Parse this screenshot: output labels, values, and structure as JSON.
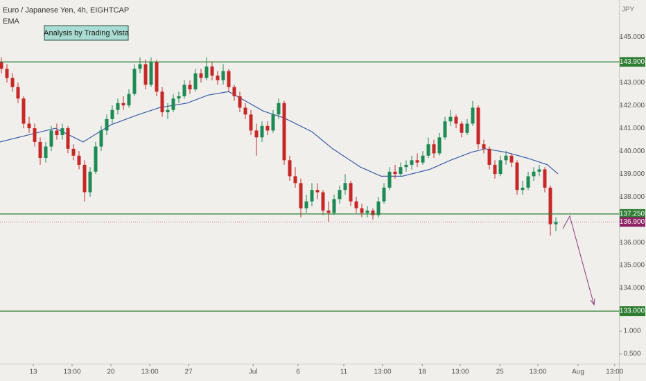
{
  "chart_data": {
    "type": "candlestick",
    "title": "Euro / Japanese Yen, 4h, EIGHTCAP",
    "annotation": "Analysis by Trading Vista",
    "y_unit": "JPY",
    "up_color": "#1e8a55",
    "down_color": "#c62828",
    "xlim": [
      -0.25,
      111.375
    ],
    "ylim": [
      130.7,
      146.61
    ],
    "y2lim": [
      0.288,
      8.242
    ],
    "yticks": [
      {
        "value": 145,
        "label": "145.000"
      },
      {
        "value": 143,
        "label": "143.000"
      },
      {
        "value": 142,
        "label": "142.000"
      },
      {
        "value": 141,
        "label": "141.000"
      },
      {
        "value": 140,
        "label": "140.000"
      },
      {
        "value": 139,
        "label": "139.000"
      },
      {
        "value": 138,
        "label": "138.000"
      },
      {
        "value": 136,
        "label": "136.000"
      },
      {
        "value": 135,
        "label": "135.000"
      },
      {
        "value": 134,
        "label": "134.000"
      }
    ],
    "y2ticks": [
      {
        "value": 1,
        "label": "1.000"
      },
      {
        "value": 0.5,
        "label": "0.500"
      }
    ],
    "xticks": [
      {
        "value": 5.75,
        "label": "13"
      },
      {
        "value": 12.75,
        "label": "13:00"
      },
      {
        "value": 19.75,
        "label": "20"
      },
      {
        "value": 26.75,
        "label": "13:00"
      },
      {
        "value": 33.75,
        "label": "27"
      },
      {
        "value": 45.4,
        "label": "Jul"
      },
      {
        "value": 53.5,
        "label": "6"
      },
      {
        "value": 61.75,
        "label": "11"
      },
      {
        "value": 68.75,
        "label": "13:00"
      },
      {
        "value": 75.9,
        "label": "18"
      },
      {
        "value": 82.75,
        "label": "13:00"
      },
      {
        "value": 89.9,
        "label": "25"
      },
      {
        "value": 96.75,
        "label": "13:00"
      },
      {
        "value": 104,
        "label": "Aug"
      },
      {
        "value": 110.6,
        "label": "13:00"
      }
    ],
    "levels": [
      {
        "value": 143.9,
        "label": "143.900",
        "color": "#2e7d32"
      },
      {
        "value": 137.25,
        "label": "137.250",
        "color": "#2e7d32"
      },
      {
        "value": 133.0,
        "label": "133.000",
        "color": "#2e7d32"
      }
    ],
    "current_price": {
      "value": 136.9,
      "label": "136.900",
      "color": "#8e2463"
    },
    "ema": {
      "name": "EMA",
      "color": "#3b5bab",
      "x": [
        -0.25,
        9.75,
        14.75,
        19.75,
        24.75,
        28.5,
        33.5,
        37.25,
        41,
        42.875,
        47.25,
        51,
        56,
        59.75,
        64.75,
        68.5,
        72.25,
        77.25,
        81,
        84.75,
        87.25,
        91,
        94.75,
        98.5,
        100.375
      ],
      "values": [
        140.4,
        141.0,
        140.4,
        141.15,
        141.6,
        141.9,
        142.1,
        142.45,
        142.6,
        142.35,
        141.75,
        141.45,
        140.85,
        140.1,
        139.3,
        138.9,
        138.9,
        139.2,
        139.6,
        139.95,
        140.1,
        139.95,
        139.7,
        139.4,
        139.0
      ]
    },
    "ohlc": [
      [
        143.9,
        144.1,
        143.4,
        143.6
      ],
      [
        143.6,
        143.8,
        143.0,
        143.2
      ],
      [
        143.2,
        143.4,
        142.6,
        142.8
      ],
      [
        142.8,
        143.0,
        142.1,
        142.3
      ],
      [
        142.3,
        142.4,
        141.0,
        141.2
      ],
      [
        141.2,
        141.5,
        140.8,
        141.0
      ],
      [
        141.0,
        141.2,
        140.2,
        140.4
      ],
      [
        140.4,
        140.6,
        139.4,
        139.7
      ],
      [
        139.7,
        140.4,
        139.5,
        140.2
      ],
      [
        140.2,
        141.1,
        140.0,
        140.9
      ],
      [
        140.9,
        141.2,
        140.5,
        140.7
      ],
      [
        140.7,
        141.2,
        140.5,
        141.0
      ],
      [
        141.0,
        141.1,
        139.9,
        140.1
      ],
      [
        140.1,
        140.3,
        139.6,
        139.8
      ],
      [
        139.8,
        140.0,
        139.2,
        139.4
      ],
      [
        139.4,
        139.6,
        137.8,
        138.2
      ],
      [
        138.2,
        139.3,
        138.0,
        139.1
      ],
      [
        139.1,
        140.4,
        139.0,
        140.2
      ],
      [
        140.2,
        141.1,
        140.0,
        140.9
      ],
      [
        140.9,
        141.6,
        140.7,
        141.4
      ],
      [
        141.4,
        142.0,
        141.2,
        141.8
      ],
      [
        141.8,
        142.3,
        141.6,
        142.1
      ],
      [
        142.1,
        142.4,
        141.8,
        142.0
      ],
      [
        142.0,
        142.7,
        141.9,
        142.5
      ],
      [
        142.5,
        143.8,
        142.4,
        143.6
      ],
      [
        143.6,
        144.1,
        143.4,
        143.8
      ],
      [
        143.8,
        144.0,
        142.7,
        142.9
      ],
      [
        142.9,
        144.1,
        142.8,
        143.9
      ],
      [
        143.9,
        144.0,
        142.4,
        142.6
      ],
      [
        142.6,
        142.8,
        141.5,
        141.7
      ],
      [
        141.7,
        142.1,
        141.4,
        141.8
      ],
      [
        141.8,
        142.5,
        141.7,
        142.3
      ],
      [
        142.3,
        142.6,
        142.1,
        142.4
      ],
      [
        142.4,
        143.1,
        142.3,
        142.9
      ],
      [
        142.9,
        143.1,
        142.5,
        142.7
      ],
      [
        142.7,
        143.6,
        142.6,
        143.4
      ],
      [
        143.4,
        143.6,
        143.0,
        143.2
      ],
      [
        143.2,
        144.1,
        143.1,
        143.7
      ],
      [
        143.7,
        143.9,
        143.1,
        143.3
      ],
      [
        143.3,
        143.5,
        142.9,
        143.1
      ],
      [
        143.1,
        143.8,
        142.9,
        143.5
      ],
      [
        143.5,
        143.6,
        142.6,
        142.8
      ],
      [
        142.8,
        142.9,
        142.2,
        142.4
      ],
      [
        142.4,
        142.6,
        141.7,
        141.9
      ],
      [
        141.9,
        142.1,
        141.4,
        141.6
      ],
      [
        141.6,
        141.8,
        140.7,
        140.9
      ],
      [
        140.9,
        141.2,
        139.8,
        140.6
      ],
      [
        140.6,
        141.3,
        140.4,
        141.1
      ],
      [
        141.1,
        141.3,
        140.7,
        140.9
      ],
      [
        140.9,
        141.8,
        140.8,
        141.6
      ],
      [
        141.6,
        142.3,
        141.4,
        142.1
      ],
      [
        142.1,
        142.2,
        139.4,
        139.6
      ],
      [
        139.6,
        139.8,
        138.7,
        138.9
      ],
      [
        138.9,
        139.3,
        138.4,
        138.6
      ],
      [
        138.6,
        138.8,
        137.1,
        137.5
      ],
      [
        137.5,
        138.1,
        137.3,
        137.8
      ],
      [
        137.8,
        138.6,
        137.6,
        138.3
      ],
      [
        138.3,
        138.6,
        137.9,
        138.2
      ],
      [
        138.2,
        138.3,
        137.2,
        137.4
      ],
      [
        137.4,
        137.8,
        136.9,
        137.3
      ],
      [
        137.3,
        138.1,
        137.2,
        137.9
      ],
      [
        137.9,
        138.5,
        137.7,
        138.3
      ],
      [
        138.3,
        139.0,
        138.1,
        138.6
      ],
      [
        138.6,
        138.7,
        137.6,
        137.8
      ],
      [
        137.8,
        138.0,
        137.3,
        137.5
      ],
      [
        137.5,
        137.7,
        137.1,
        137.3
      ],
      [
        137.3,
        137.6,
        137.1,
        137.4
      ],
      [
        137.4,
        137.5,
        137.0,
        137.2
      ],
      [
        137.2,
        138.0,
        137.1,
        137.8
      ],
      [
        137.8,
        138.6,
        137.7,
        138.4
      ],
      [
        138.4,
        139.3,
        138.3,
        139.1
      ],
      [
        139.1,
        139.4,
        138.8,
        139.0
      ],
      [
        139.0,
        139.5,
        138.9,
        139.3
      ],
      [
        139.3,
        139.6,
        139.1,
        139.4
      ],
      [
        139.4,
        139.8,
        139.2,
        139.6
      ],
      [
        139.6,
        139.9,
        139.3,
        139.5
      ],
      [
        139.5,
        140.0,
        139.4,
        139.8
      ],
      [
        139.8,
        140.6,
        139.7,
        140.3
      ],
      [
        140.3,
        140.5,
        139.7,
        139.9
      ],
      [
        139.9,
        140.8,
        139.8,
        140.6
      ],
      [
        140.6,
        141.5,
        140.5,
        141.3
      ],
      [
        141.3,
        141.8,
        141.1,
        141.5
      ],
      [
        141.5,
        141.6,
        141.0,
        141.2
      ],
      [
        141.2,
        141.3,
        140.6,
        140.8
      ],
      [
        140.8,
        141.4,
        140.7,
        141.2
      ],
      [
        141.2,
        142.2,
        141.1,
        141.9
      ],
      [
        141.9,
        142.0,
        140.1,
        140.3
      ],
      [
        140.3,
        140.5,
        139.9,
        140.1
      ],
      [
        140.1,
        140.2,
        139.2,
        139.4
      ],
      [
        139.4,
        139.6,
        138.8,
        139.0
      ],
      [
        139.0,
        139.8,
        138.9,
        139.6
      ],
      [
        139.6,
        140.0,
        139.4,
        139.8
      ],
      [
        139.8,
        139.9,
        139.3,
        139.5
      ],
      [
        139.5,
        139.6,
        138.1,
        138.3
      ],
      [
        138.3,
        138.7,
        138.1,
        138.4
      ],
      [
        138.4,
        139.1,
        138.3,
        138.9
      ],
      [
        138.9,
        139.3,
        138.7,
        139.1
      ],
      [
        139.1,
        139.4,
        138.9,
        139.2
      ],
      [
        139.2,
        139.3,
        138.2,
        138.4
      ],
      [
        138.4,
        138.5,
        136.3,
        136.8
      ],
      [
        136.8,
        137.1,
        136.5,
        136.9
      ]
    ]
  }
}
